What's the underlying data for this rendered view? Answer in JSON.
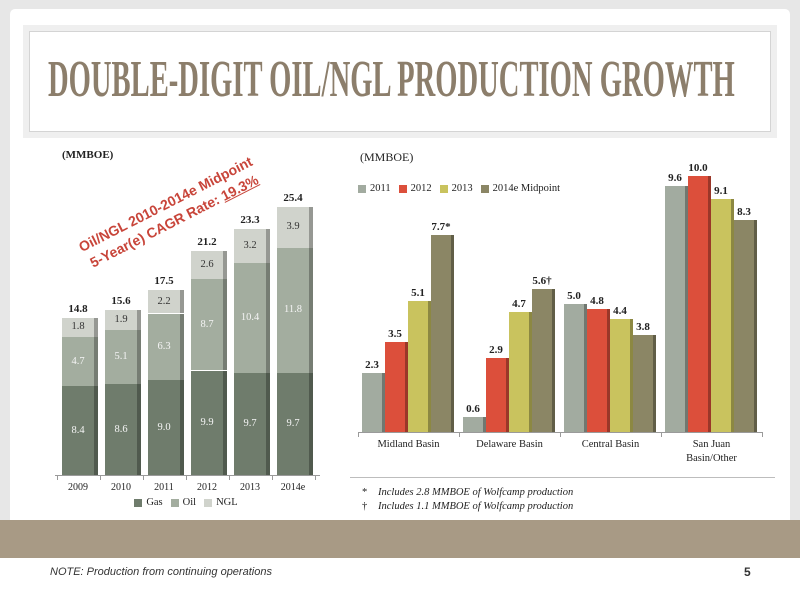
{
  "slide": {
    "title": "DOUBLE-DIGIT OIL/NGL PRODUCTION GROWTH",
    "note": "NOTE: Production from continuing operations",
    "page_number": "5"
  },
  "colors": {
    "title": "#8c7e6b",
    "accent_red": "#c8453a",
    "band": "#a89a85"
  },
  "callout": {
    "line1": "Oil/NGL 2010-2014e Midpoint",
    "line2_prefix": "5-Year(e) CAGR Rate: ",
    "line2_value": "19.3%"
  },
  "footnotes": [
    {
      "mark": "*",
      "text": "Includes 2.8 MMBOE of Wolfcamp production"
    },
    {
      "mark": "†",
      "text": "Includes 1.1 MMBOE of Wolfcamp production"
    }
  ],
  "chart_data": [
    {
      "type": "bar",
      "stacked": true,
      "unit_label": "(MMBOE)",
      "categories": [
        "2009",
        "2010",
        "2011",
        "2012",
        "2013",
        "2014e"
      ],
      "series": [
        {
          "name": "Gas",
          "values": [
            8.4,
            8.6,
            9.0,
            9.9,
            9.7,
            9.7
          ],
          "color": "#6f7c6c",
          "label_color": "#f4f4f4"
        },
        {
          "name": "Oil",
          "values": [
            4.7,
            5.1,
            6.3,
            8.7,
            10.4,
            11.8
          ],
          "color": "#a3ad9f",
          "label_color": "#f4f4f4"
        },
        {
          "name": "NGL",
          "values": [
            1.8,
            1.9,
            2.2,
            2.6,
            3.2,
            3.9
          ],
          "color": "#d0d3cc",
          "label_color": "#333333"
        }
      ],
      "totals": [
        14.8,
        15.6,
        17.5,
        21.2,
        23.3,
        25.4
      ],
      "ylim": [
        0,
        27
      ],
      "grid": false,
      "legend": "bottom"
    },
    {
      "type": "bar",
      "unit_label": "(MMBOE)",
      "categories": [
        "Midland Basin",
        "Delaware Basin",
        "Central Basin",
        "San Juan\nBasin/Other"
      ],
      "series": [
        {
          "name": "2011",
          "values": [
            2.3,
            0.6,
            5.0,
            9.6
          ],
          "color": "#a2aba0"
        },
        {
          "name": "2012",
          "values": [
            3.5,
            2.9,
            4.8,
            10.0
          ],
          "color": "#dc4f3b"
        },
        {
          "name": "2013",
          "values": [
            5.1,
            4.7,
            4.4,
            9.1
          ],
          "color": "#c9c35e"
        },
        {
          "name": "2014e Midpoint",
          "values": [
            7.7,
            5.6,
            3.8,
            8.3
          ],
          "label_suffix": [
            "*",
            "†",
            "",
            ""
          ],
          "color": "#8b8665"
        }
      ],
      "ylim": [
        0,
        11
      ],
      "grid": false,
      "legend": "top-left"
    }
  ]
}
